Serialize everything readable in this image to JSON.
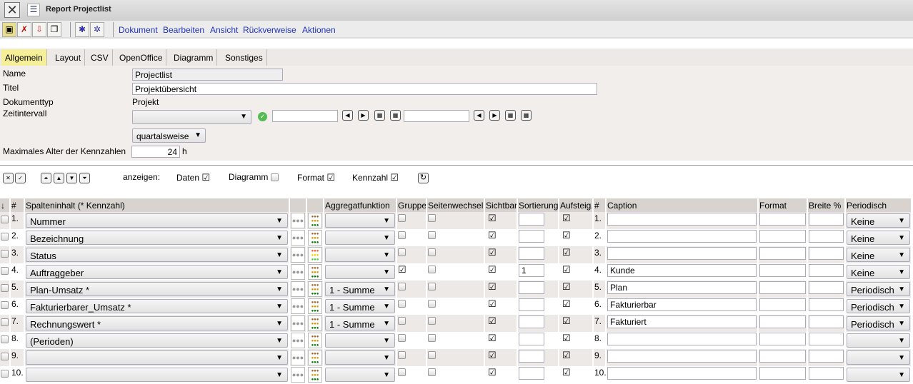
{
  "window": {
    "title": "Report Projectlist"
  },
  "toolbar": {
    "menus": [
      "Dokument",
      "Bearbeiten",
      "Ansicht",
      "Rückverweise",
      "Aktionen"
    ]
  },
  "tabs": [
    {
      "label": "Allgemein",
      "active": true
    },
    {
      "label": "Layout"
    },
    {
      "label": "CSV"
    },
    {
      "label": "OpenOffice"
    },
    {
      "label": "Diagramm"
    },
    {
      "label": "Sonstiges"
    }
  ],
  "form": {
    "name_label": "Name",
    "name_value": "Projectlist",
    "titel_label": "Titel",
    "titel_value": "Projektübersicht",
    "doctype_label": "Dokumenttyp",
    "doctype_value": "Projekt",
    "zeit_label": "Zeitintervall",
    "zeit_select": "",
    "zeit_from": "",
    "zeit_to": "",
    "interval": "quartalsweise",
    "maxage_label": "Maximales Alter der Kennzahlen",
    "maxage_value": "24",
    "maxage_unit": "h"
  },
  "controls": {
    "show_label": "anzeigen:",
    "options": [
      {
        "label": "Daten",
        "checked": true
      },
      {
        "label": "Diagramm",
        "checked": false
      },
      {
        "label": "Format",
        "checked": true
      },
      {
        "label": "Kennzahl",
        "checked": true
      }
    ]
  },
  "table": {
    "headers": [
      "",
      "#",
      "Spalteninhalt (* Kennzahl)",
      "",
      "",
      "Aggregatfunktion",
      "Gruppe",
      "Seitenwechsel",
      "Sichtbar",
      "Sortierung",
      "Aufsteig.",
      "#",
      "Caption",
      "Format",
      "Breite %",
      "Periodisch"
    ],
    "rows": [
      {
        "num": "1.",
        "content": "Nummer",
        "agg": "",
        "gruppe": false,
        "sichtbar": true,
        "sort": "",
        "auf": true,
        "caption": "",
        "period": "Keine",
        "traffic": "brown"
      },
      {
        "num": "2.",
        "content": "Bezeichnung",
        "agg": "",
        "gruppe": false,
        "sichtbar": true,
        "sort": "",
        "auf": true,
        "caption": "",
        "period": "Keine",
        "traffic": "brown"
      },
      {
        "num": "3.",
        "content": "Status",
        "agg": "",
        "gruppe": false,
        "sichtbar": true,
        "sort": "",
        "auf": true,
        "caption": "",
        "period": "Keine",
        "traffic": "bright"
      },
      {
        "num": "4.",
        "content": "Auftraggeber",
        "agg": "",
        "gruppe": true,
        "sichtbar": true,
        "sort": "1",
        "auf": true,
        "caption": "Kunde",
        "period": "Keine",
        "traffic": "brown"
      },
      {
        "num": "5.",
        "content": "Plan-Umsatz *",
        "agg": "1 - Summe",
        "gruppe": false,
        "sichtbar": true,
        "sort": "",
        "auf": true,
        "caption": "Plan",
        "period": "Periodisch",
        "traffic": "brown"
      },
      {
        "num": "6.",
        "content": "Fakturierbarer_Umsatz *",
        "agg": "1 - Summe",
        "gruppe": false,
        "sichtbar": true,
        "sort": "",
        "auf": true,
        "caption": "Fakturierbar",
        "period": "Periodisch",
        "traffic": "brown"
      },
      {
        "num": "7.",
        "content": "Rechnungswert *",
        "agg": "1 - Summe",
        "gruppe": false,
        "sichtbar": true,
        "sort": "",
        "auf": true,
        "caption": "Fakturiert",
        "period": "Periodisch",
        "traffic": "brown"
      },
      {
        "num": "8.",
        "content": "(Perioden)",
        "agg": "",
        "gruppe": false,
        "sichtbar": true,
        "sort": "",
        "auf": true,
        "caption": "",
        "period": "",
        "traffic": "brown"
      },
      {
        "num": "9.",
        "content": "",
        "agg": "",
        "gruppe": false,
        "sichtbar": true,
        "sort": "",
        "auf": true,
        "caption": "",
        "period": "",
        "traffic": "brown"
      },
      {
        "num": "10.",
        "content": "",
        "agg": "",
        "gruppe": false,
        "sichtbar": true,
        "sort": "",
        "auf": true,
        "caption": "",
        "period": "",
        "traffic": "brown"
      }
    ]
  },
  "colors": {
    "menu_link": "#2233bb",
    "active_tab": "#f5ef98",
    "header_bg": "#d8d3ce",
    "row_alt": "#ece9e7"
  }
}
